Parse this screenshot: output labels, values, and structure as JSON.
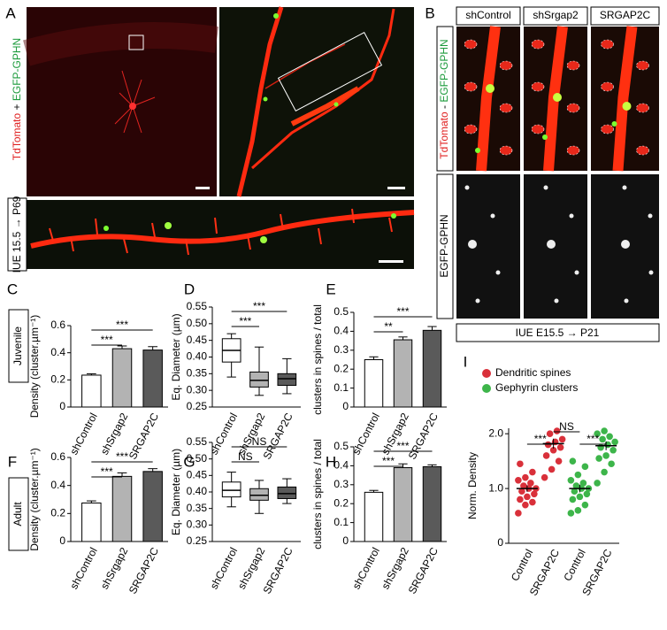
{
  "panels": {
    "A": {
      "letter": "A",
      "label_parts": [
        "TdTomato",
        " + ",
        "EGFP-GPHN"
      ],
      "timeline": "IUE 15.5 → P69"
    },
    "B": {
      "letter": "B",
      "columns": [
        "shControl",
        "shSrgap2",
        "SRGAP2C"
      ],
      "label_parts": [
        "TdTomato",
        " - ",
        "EGFP-GPHN"
      ],
      "row2_label": "EGFP-GPHN",
      "timeline": "IUE E15.5 → P21"
    },
    "rows": [
      "Juvenile",
      "Adult"
    ]
  },
  "chart_data": [
    {
      "type": "bar",
      "letter": "C",
      "y_label": "Density (cluster.µm⁻¹)",
      "categories": [
        "shControl",
        "shSrgap2",
        "SRGAP2C"
      ],
      "values": [
        0.235,
        0.43,
        0.42
      ],
      "errors": [
        0.01,
        0.02,
        0.025
      ],
      "colors": [
        "#ffffff",
        "#b3b3b3",
        "#5a5a5a"
      ],
      "ylim": [
        0,
        0.6
      ],
      "yticks": [
        0,
        0.2,
        0.4,
        0.6
      ],
      "brackets": [
        {
          "label": "***",
          "from": 0,
          "to": 1
        },
        {
          "label": "***",
          "from": 0,
          "to": 2
        }
      ]
    },
    {
      "type": "box",
      "letter": "D",
      "y_label": "Eq. Diameter (µm)",
      "categories": [
        "shControl",
        "shSrgap2",
        "SRGAP2C"
      ],
      "boxes": [
        {
          "min": 0.34,
          "q1": 0.385,
          "median": 0.42,
          "q3": 0.455,
          "max": 0.47
        },
        {
          "min": 0.285,
          "q1": 0.31,
          "median": 0.33,
          "q3": 0.355,
          "max": 0.43
        },
        {
          "min": 0.29,
          "q1": 0.315,
          "median": 0.335,
          "q3": 0.35,
          "max": 0.395
        }
      ],
      "colors": [
        "#ffffff",
        "#b3b3b3",
        "#5a5a5a"
      ],
      "ylim": [
        0.25,
        0.55
      ],
      "yticks": [
        0.25,
        {
          "value": 0.3,
          "label": "0.30"
        },
        0.35,
        {
          "value": 0.4,
          "label": "0.40"
        },
        0.45,
        {
          "value": 0.5,
          "label": "0.50"
        },
        0.55
      ],
      "brackets": [
        {
          "label": "***",
          "from": 0,
          "to": 1
        },
        {
          "label": "***",
          "from": 0,
          "to": 2
        }
      ]
    },
    {
      "type": "bar",
      "letter": "E",
      "y_label": "clusters in spines / total",
      "categories": [
        "shControl",
        "shSrgap2",
        "SRGAP2C"
      ],
      "values": [
        0.25,
        0.355,
        0.405
      ],
      "errors": [
        0.015,
        0.015,
        0.02
      ],
      "colors": [
        "#ffffff",
        "#b3b3b3",
        "#5a5a5a"
      ],
      "ylim": [
        0,
        0.5
      ],
      "yticks": [
        0,
        0.1,
        0.2,
        0.3,
        0.4,
        0.5
      ],
      "brackets": [
        {
          "label": "**",
          "from": 0,
          "to": 1
        },
        {
          "label": "***",
          "from": 0,
          "to": 2
        }
      ]
    },
    {
      "type": "bar",
      "letter": "F",
      "y_label": "Density (cluster.µm⁻¹)",
      "categories": [
        "shControl",
        "shSrgap2",
        "SRGAP2C"
      ],
      "values": [
        0.275,
        0.465,
        0.5
      ],
      "errors": [
        0.015,
        0.025,
        0.02
      ],
      "colors": [
        "#ffffff",
        "#b3b3b3",
        "#5a5a5a"
      ],
      "ylim": [
        0,
        0.6
      ],
      "yticks": [
        0,
        0.2,
        0.4,
        0.6
      ],
      "brackets": [
        {
          "label": "***",
          "from": 0,
          "to": 1
        },
        {
          "label": "***",
          "from": 0,
          "to": 2
        }
      ]
    },
    {
      "type": "box",
      "letter": "G",
      "y_label": "Eq. Diameter (µm)",
      "categories": [
        "shControl",
        "shSrgap2",
        "SRGAP2C"
      ],
      "boxes": [
        {
          "min": 0.355,
          "q1": 0.385,
          "median": 0.405,
          "q3": 0.43,
          "max": 0.46
        },
        {
          "min": 0.335,
          "q1": 0.375,
          "median": 0.39,
          "q3": 0.41,
          "max": 0.435
        },
        {
          "min": 0.365,
          "q1": 0.38,
          "median": 0.395,
          "q3": 0.415,
          "max": 0.44
        }
      ],
      "colors": [
        "#ffffff",
        "#b3b3b3",
        "#5a5a5a"
      ],
      "ylim": [
        0.25,
        0.55
      ],
      "yticks": [
        0.25,
        {
          "value": 0.3,
          "label": "0.30"
        },
        0.35,
        {
          "value": 0.4,
          "label": "0.40"
        },
        0.45,
        {
          "value": 0.5,
          "label": "0.50"
        },
        0.55
      ],
      "brackets": [
        {
          "label": "NS",
          "from": 0,
          "to": 1
        },
        {
          "label": "NS",
          "from": 0,
          "to": 2
        }
      ]
    },
    {
      "type": "bar",
      "letter": "H",
      "y_label": "clusters in spines / total",
      "categories": [
        "shControl",
        "shSrgap2",
        "SRGAP2C"
      ],
      "values": [
        0.26,
        0.39,
        0.395
      ],
      "errors": [
        0.01,
        0.02,
        0.01
      ],
      "colors": [
        "#ffffff",
        "#b3b3b3",
        "#5a5a5a"
      ],
      "ylim": [
        0,
        0.5
      ],
      "yticks": [
        0,
        0.1,
        0.2,
        0.3,
        0.4,
        0.5
      ],
      "brackets": [
        {
          "label": "***",
          "from": 0,
          "to": 1
        },
        {
          "label": "***",
          "from": 0,
          "to": 2
        }
      ]
    },
    {
      "type": "strip",
      "letter": "I",
      "y_label": "Norm. Density",
      "categories": [
        "Control",
        "SRGAP2C",
        "Control",
        "SRGAP2C"
      ],
      "series": [
        {
          "name": "Dendritic spines",
          "color": "#d9303a",
          "points": [
            [
              0.55,
              0.7,
              0.75,
              0.8,
              0.85,
              0.9,
              0.95,
              1.0,
              1.0,
              1.05,
              1.1,
              1.15,
              1.2,
              1.3,
              1.45
            ],
            [
              1.2,
              1.35,
              1.5,
              1.6,
              1.7,
              1.75,
              1.8,
              1.85,
              1.9,
              2.0,
              2.05
            ]
          ],
          "means": [
            1.0,
            1.82
          ],
          "errors": [
            0.06,
            0.09
          ]
        },
        {
          "name": "Gephyrin clusters",
          "color": "#3db54a",
          "points": [
            [
              0.55,
              0.6,
              0.7,
              0.8,
              0.85,
              0.9,
              0.95,
              1.0,
              1.0,
              1.05,
              1.1,
              1.15,
              1.25,
              1.4,
              1.5
            ],
            [
              1.1,
              1.3,
              1.45,
              1.55,
              1.6,
              1.7,
              1.75,
              1.8,
              1.85,
              1.9,
              1.95,
              2.0,
              2.05
            ]
          ],
          "means": [
            1.0,
            1.78
          ],
          "errors": [
            0.07,
            0.08
          ]
        }
      ],
      "ylim": [
        0,
        2.1
      ],
      "yticks": [
        0,
        {
          "value": 1,
          "label": "1.0"
        },
        {
          "value": 2,
          "label": "2.0"
        }
      ],
      "brackets": [
        {
          "label": "***",
          "from": 0,
          "to": 1
        },
        {
          "label": "NS",
          "from": 1,
          "to": 2
        },
        {
          "label": "***",
          "from": 2,
          "to": 3
        }
      ]
    }
  ]
}
